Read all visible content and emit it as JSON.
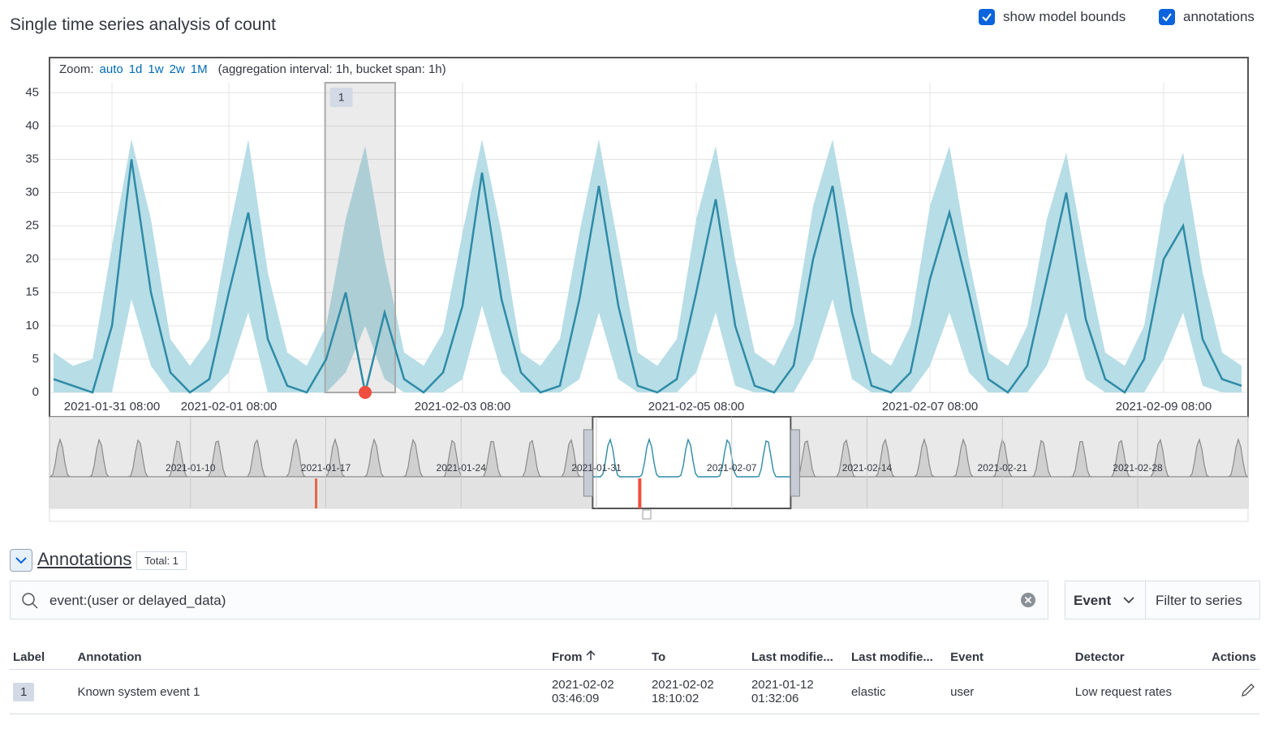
{
  "header": {
    "title": "Single time series analysis of count",
    "checkboxes": [
      {
        "label": "show model bounds",
        "checked": true
      },
      {
        "label": "annotations",
        "checked": true
      }
    ]
  },
  "controls": {
    "zoom_label": "Zoom:",
    "zoom_options": [
      "auto",
      "1d",
      "1w",
      "2w",
      "1M"
    ],
    "interval_info": "(aggregation interval: 1h, bucket span: 1h)"
  },
  "chart_data": {
    "type": "line",
    "line_color": "#2e8ba6",
    "bounds_color": "#b7dde6",
    "x": [
      "2021-01-30 20:00",
      "2021-01-31 00:00",
      "2021-01-31 04:00",
      "2021-01-31 08:00",
      "2021-01-31 12:00",
      "2021-01-31 16:00",
      "2021-01-31 20:00",
      "2021-02-01 00:00",
      "2021-02-01 04:00",
      "2021-02-01 08:00",
      "2021-02-01 12:00",
      "2021-02-01 16:00",
      "2021-02-01 20:00",
      "2021-02-02 00:00",
      "2021-02-02 04:00",
      "2021-02-02 08:00",
      "2021-02-02 12:00",
      "2021-02-02 16:00",
      "2021-02-02 20:00",
      "2021-02-03 00:00",
      "2021-02-03 04:00",
      "2021-02-03 08:00",
      "2021-02-03 12:00",
      "2021-02-03 16:00",
      "2021-02-03 20:00",
      "2021-02-04 00:00",
      "2021-02-04 04:00",
      "2021-02-04 08:00",
      "2021-02-04 12:00",
      "2021-02-04 16:00",
      "2021-02-04 20:00",
      "2021-02-05 00:00",
      "2021-02-05 04:00",
      "2021-02-05 08:00",
      "2021-02-05 12:00",
      "2021-02-05 16:00",
      "2021-02-05 20:00",
      "2021-02-06 00:00",
      "2021-02-06 04:00",
      "2021-02-06 08:00",
      "2021-02-06 12:00",
      "2021-02-06 16:00",
      "2021-02-06 20:00",
      "2021-02-07 00:00",
      "2021-02-07 04:00",
      "2021-02-07 08:00",
      "2021-02-07 12:00",
      "2021-02-07 16:00",
      "2021-02-07 20:00",
      "2021-02-08 00:00",
      "2021-02-08 04:00",
      "2021-02-08 08:00",
      "2021-02-08 12:00",
      "2021-02-08 16:00",
      "2021-02-08 20:00",
      "2021-02-09 00:00",
      "2021-02-09 04:00",
      "2021-02-09 08:00",
      "2021-02-09 12:00",
      "2021-02-09 16:00",
      "2021-02-09 20:00",
      "2021-02-10 00:00"
    ],
    "values": [
      2,
      1,
      0,
      10,
      35,
      15,
      3,
      0,
      2,
      15,
      27,
      8,
      1,
      0,
      5,
      15,
      0,
      12,
      2,
      0,
      3,
      13,
      33,
      14,
      3,
      0,
      1,
      14,
      31,
      13,
      1,
      0,
      2,
      15,
      29,
      10,
      1,
      0,
      4,
      20,
      31,
      12,
      1,
      0,
      3,
      17,
      27,
      15,
      2,
      0,
      4,
      17,
      30,
      11,
      2,
      0,
      5,
      20,
      25,
      8,
      2,
      1
    ],
    "model_upper": [
      6,
      4,
      5,
      22,
      38,
      26,
      8,
      4,
      8,
      24,
      38,
      18,
      6,
      4,
      10,
      26,
      37,
      20,
      6,
      4,
      9,
      24,
      38,
      24,
      6,
      4,
      8,
      24,
      38,
      22,
      6,
      4,
      8,
      26,
      37,
      20,
      6,
      4,
      10,
      28,
      38,
      22,
      6,
      4,
      10,
      28,
      37,
      20,
      6,
      4,
      10,
      26,
      36,
      20,
      6,
      4,
      10,
      28,
      36,
      18,
      6,
      4
    ],
    "model_lower": [
      0,
      0,
      0,
      0,
      14,
      4,
      0,
      0,
      0,
      3,
      12,
      0,
      0,
      0,
      0,
      3,
      10,
      2,
      0,
      0,
      0,
      2,
      13,
      3,
      0,
      0,
      0,
      2,
      12,
      2,
      0,
      0,
      0,
      3,
      12,
      1,
      0,
      0,
      0,
      5,
      14,
      2,
      0,
      0,
      0,
      4,
      12,
      3,
      0,
      0,
      0,
      4,
      12,
      2,
      0,
      0,
      0,
      5,
      12,
      1,
      0,
      0
    ],
    "annotations": [
      {
        "label": "1",
        "from": "2021-02-02 03:46:09",
        "to": "2021-02-02 18:10:02"
      }
    ],
    "anomalies": [
      {
        "x": "2021-02-02 12:00",
        "value": 0,
        "color": "#f04e3e"
      }
    ],
    "xlim": [
      "2021-01-30 19:20",
      "2021-02-10 01:10"
    ],
    "xticks": [
      "2021-01-31 08:00",
      "2021-02-01 08:00",
      "2021-02-03 08:00",
      "2021-02-05 08:00",
      "2021-02-07 08:00",
      "2021-02-09 08:00"
    ],
    "ylim": [
      0,
      46.5
    ],
    "yticks": [
      0,
      5,
      10,
      15,
      20,
      25,
      30,
      35,
      40,
      45
    ],
    "grid": true
  },
  "context_chart": {
    "xlim": [
      "2021-01-02 18:00",
      "2021-03-05 16:00"
    ],
    "xticks": [
      "2021-01-10",
      "2021-01-17",
      "2021-01-24",
      "2021-01-31",
      "2021-02-07",
      "2021-02-14",
      "2021-02-21",
      "2021-02-28"
    ]
  },
  "annotations_panel": {
    "title": "Annotations",
    "total": "Total: 1",
    "search": "event:(user or delayed_data)",
    "event_filter": "Event",
    "filter_button": "Filter to series",
    "table": {
      "columns": [
        "Label",
        "Annotation",
        "From",
        "To",
        "Last modifie...",
        "Last modifie...",
        "Event",
        "Detector",
        "Actions"
      ],
      "rows": [
        [
          "1",
          "Known system event 1",
          "2021-02-02 03:46:09",
          "2021-02-02 18:10:02",
          "2021-01-12 01:32:06",
          "elastic",
          "user",
          "Low request rates"
        ]
      ]
    }
  }
}
